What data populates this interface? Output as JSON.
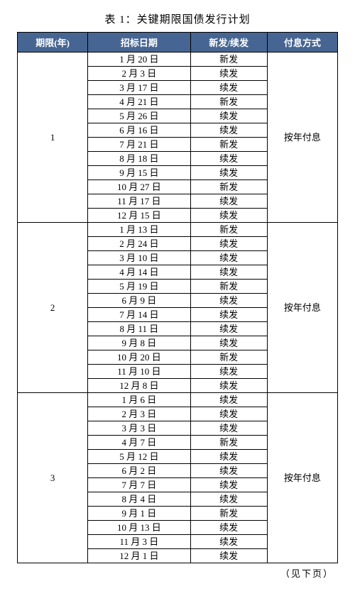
{
  "title": "表 1：关键期限国债发行计划",
  "columns": [
    "期限(年)",
    "招标日期",
    "新发/续发",
    "付息方式"
  ],
  "groups": [
    {
      "period": "1",
      "payment": "按年付息",
      "rows": [
        {
          "date": "1 月 20 日",
          "type": "新发"
        },
        {
          "date": "2 月 3 日",
          "type": "续发"
        },
        {
          "date": "3 月 17 日",
          "type": "续发"
        },
        {
          "date": "4 月 21 日",
          "type": "新发"
        },
        {
          "date": "5 月 26 日",
          "type": "续发"
        },
        {
          "date": "6 月 16 日",
          "type": "续发"
        },
        {
          "date": "7 月 21 日",
          "type": "新发"
        },
        {
          "date": "8 月 18 日",
          "type": "续发"
        },
        {
          "date": "9 月 15 日",
          "type": "续发"
        },
        {
          "date": "10 月 27 日",
          "type": "新发"
        },
        {
          "date": "11 月 17 日",
          "type": "续发"
        },
        {
          "date": "12 月 15 日",
          "type": "续发"
        }
      ]
    },
    {
      "period": "2",
      "payment": "按年付息",
      "rows": [
        {
          "date": "1 月 13 日",
          "type": "新发"
        },
        {
          "date": "2 月 24 日",
          "type": "续发"
        },
        {
          "date": "3 月 10 日",
          "type": "续发"
        },
        {
          "date": "4 月 14 日",
          "type": "续发"
        },
        {
          "date": "5 月 19 日",
          "type": "新发"
        },
        {
          "date": "6 月 9 日",
          "type": "续发"
        },
        {
          "date": "7 月 14 日",
          "type": "续发"
        },
        {
          "date": "8 月 11 日",
          "type": "续发"
        },
        {
          "date": "9 月 8 日",
          "type": "续发"
        },
        {
          "date": "10 月 20 日",
          "type": "新发"
        },
        {
          "date": "11 月 10 日",
          "type": "续发"
        },
        {
          "date": "12 月 8 日",
          "type": "续发"
        }
      ]
    },
    {
      "period": "3",
      "payment": "按年付息",
      "rows": [
        {
          "date": "1 月 6 日",
          "type": "续发"
        },
        {
          "date": "2 月 3 日",
          "type": "续发"
        },
        {
          "date": "3 月 3 日",
          "type": "续发"
        },
        {
          "date": "4 月 7 日",
          "type": "新发"
        },
        {
          "date": "5 月 12 日",
          "type": "续发"
        },
        {
          "date": "6 月 2 日",
          "type": "续发"
        },
        {
          "date": "7 月 7 日",
          "type": "续发"
        },
        {
          "date": "8 月 4 日",
          "type": "续发"
        },
        {
          "date": "9 月 1 日",
          "type": "新发"
        },
        {
          "date": "10 月 13 日",
          "type": "续发"
        },
        {
          "date": "11 月 3 日",
          "type": "续发"
        },
        {
          "date": "12 月 1 日",
          "type": "续发"
        }
      ]
    }
  ],
  "footnote": "（见下页）",
  "header_bg": "#466593",
  "header_fg": "#ffffff",
  "border_color": "#000000",
  "col_widths": [
    "22%",
    "32%",
    "24%",
    "22%"
  ]
}
